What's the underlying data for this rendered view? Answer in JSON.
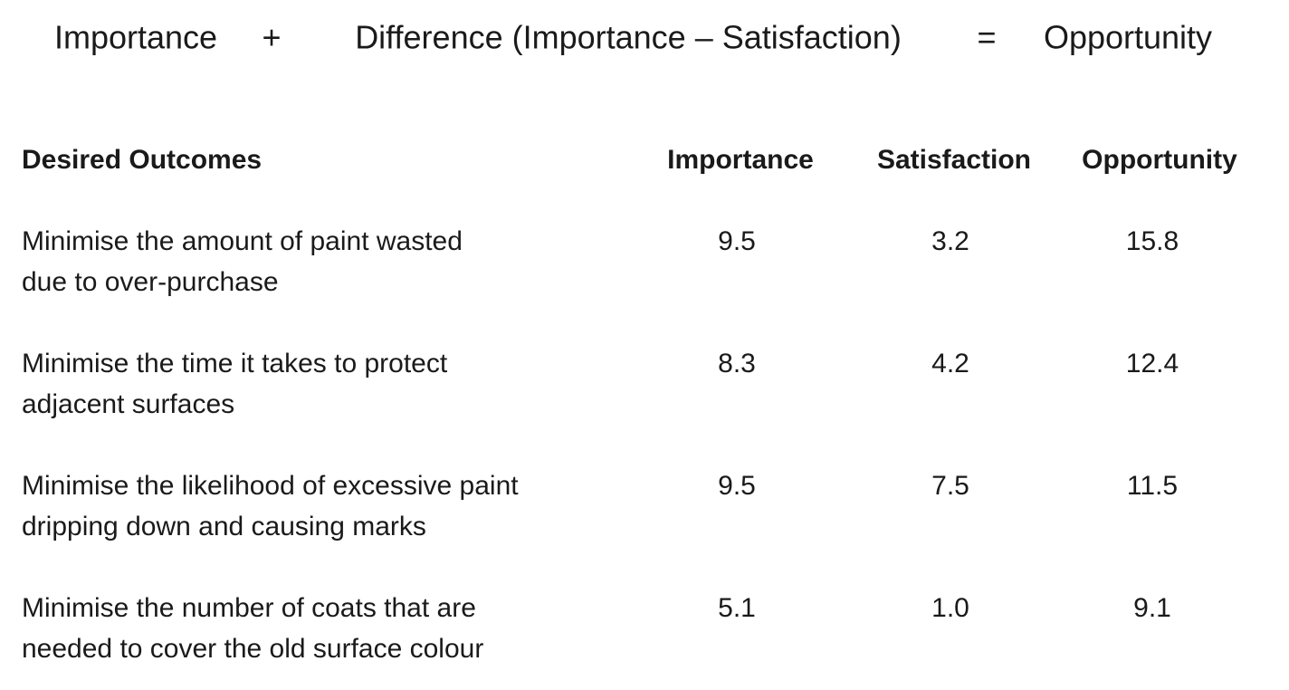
{
  "formula": [
    "Importance",
    "+",
    "Difference (Importance – Satisfaction)",
    "=",
    "Opportunity"
  ],
  "table": {
    "header": [
      "Desired Outcomes",
      "Importance",
      "Satisfaction",
      "Opportunity"
    ],
    "rows": [
      {
        "outcome": [
          "Minimise the amount of paint wasted",
          "due to over-purchase"
        ],
        "importance": "9.5",
        "satisfaction": "3.2",
        "opportunity": "15.8"
      },
      {
        "outcome": [
          "Minimise the time it takes to protect",
          "adjacent surfaces"
        ],
        "importance": "8.3",
        "satisfaction": "4.2",
        "opportunity": "12.4"
      },
      {
        "outcome": [
          "Minimise the likelihood of excessive paint",
          "dripping down and causing marks"
        ],
        "importance": "9.5",
        "satisfaction": "7.5",
        "opportunity": "11.5"
      },
      {
        "outcome": [
          "Minimise the number of coats that are",
          "needed to cover the old surface colour"
        ],
        "importance": "5.1",
        "satisfaction": "1.0",
        "opportunity": "9.1"
      }
    ]
  }
}
